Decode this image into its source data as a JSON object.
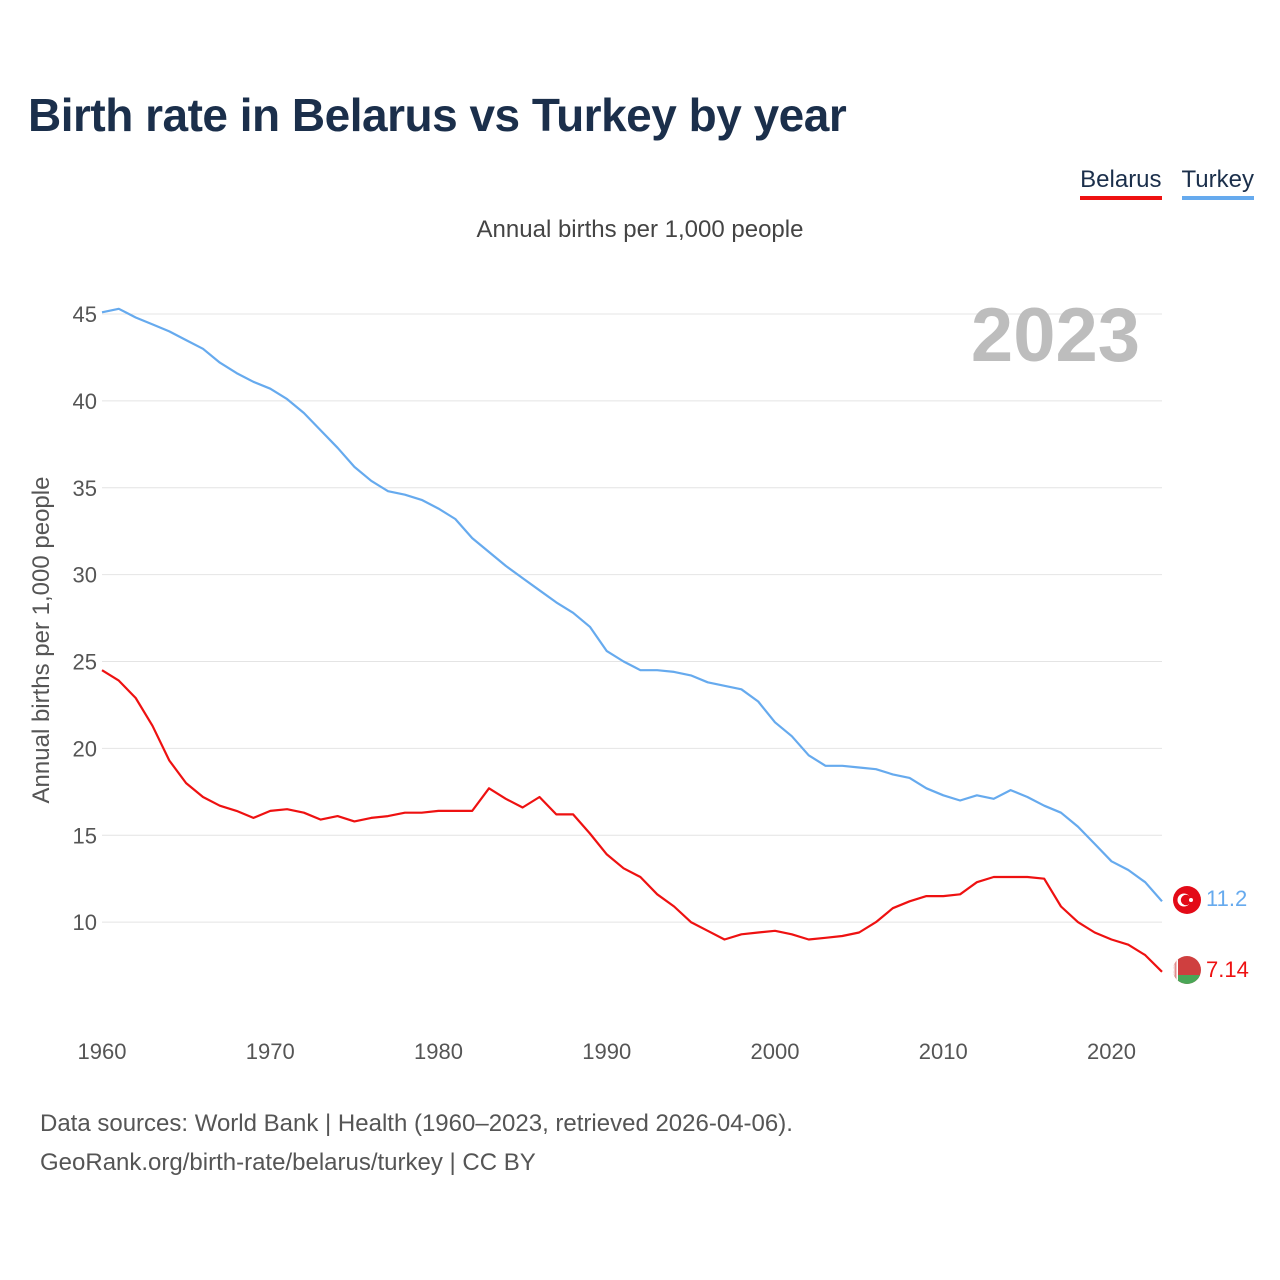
{
  "title": "Birth rate in Belarus vs Turkey by year",
  "subtitle": "Annual births per 1,000 people",
  "legend": [
    {
      "label": "Belarus",
      "color": "#ee1111"
    },
    {
      "label": "Turkey",
      "color": "#66aaee"
    }
  ],
  "year_display": "2023",
  "end_labels": {
    "belarus": "7.14",
    "turkey": "11.2"
  },
  "flags": {
    "belarus": "belarus-flag",
    "turkey": "turkey-flag"
  },
  "source": {
    "line1": "Data sources: World Bank | Health (1960–2023, retrieved 2026-04-06).",
    "line2": "GeoRank.org/birth-rate/belarus/turkey | CC BY"
  },
  "chart_data": {
    "type": "line",
    "title": "Birth rate in Belarus vs Turkey by year",
    "xlabel": "",
    "ylabel": "Annual births per 1,000 people",
    "xlim": [
      1960,
      2023
    ],
    "ylim": [
      5,
      45
    ],
    "yticks": [
      10,
      15,
      20,
      25,
      30,
      35,
      40,
      45
    ],
    "xticks": [
      1960,
      1970,
      1980,
      1990,
      2000,
      2010,
      2020
    ],
    "grid": true,
    "legend_position": "top-right",
    "x": [
      1960,
      1961,
      1962,
      1963,
      1964,
      1965,
      1966,
      1967,
      1968,
      1969,
      1970,
      1971,
      1972,
      1973,
      1974,
      1975,
      1976,
      1977,
      1978,
      1979,
      1980,
      1981,
      1982,
      1983,
      1984,
      1985,
      1986,
      1987,
      1988,
      1989,
      1990,
      1991,
      1992,
      1993,
      1994,
      1995,
      1996,
      1997,
      1998,
      1999,
      2000,
      2001,
      2002,
      2003,
      2004,
      2005,
      2006,
      2007,
      2008,
      2009,
      2010,
      2011,
      2012,
      2013,
      2014,
      2015,
      2016,
      2017,
      2018,
      2019,
      2020,
      2021,
      2022,
      2023
    ],
    "series": [
      {
        "name": "Belarus",
        "color": "#ee1111",
        "values": [
          24.5,
          23.9,
          22.9,
          21.3,
          19.3,
          18.0,
          17.2,
          16.7,
          16.4,
          16.0,
          16.4,
          16.5,
          16.3,
          15.9,
          16.1,
          15.8,
          16.0,
          16.1,
          16.3,
          16.3,
          16.4,
          16.4,
          16.4,
          17.7,
          17.1,
          16.6,
          17.2,
          16.2,
          16.2,
          15.1,
          13.9,
          13.1,
          12.6,
          11.6,
          10.9,
          10.0,
          9.5,
          9.0,
          9.3,
          9.4,
          9.5,
          9.3,
          9.0,
          9.1,
          9.2,
          9.4,
          10.0,
          10.8,
          11.2,
          11.5,
          11.5,
          11.6,
          12.3,
          12.6,
          12.6,
          12.6,
          12.5,
          10.9,
          10.0,
          9.4,
          9.0,
          8.7,
          8.1,
          7.14
        ]
      },
      {
        "name": "Turkey",
        "color": "#66aaee",
        "values": [
          45.1,
          45.3,
          44.8,
          44.4,
          44.0,
          43.5,
          43.0,
          42.2,
          41.6,
          41.1,
          40.7,
          40.1,
          39.3,
          38.3,
          37.3,
          36.2,
          35.4,
          34.8,
          34.6,
          34.3,
          33.8,
          33.2,
          32.1,
          31.3,
          30.5,
          29.8,
          29.1,
          28.4,
          27.8,
          27.0,
          25.6,
          25.0,
          24.5,
          24.5,
          24.4,
          24.2,
          23.8,
          23.6,
          23.4,
          22.7,
          21.5,
          20.7,
          19.6,
          19.0,
          19.0,
          18.9,
          18.8,
          18.5,
          18.3,
          17.7,
          17.3,
          17.0,
          17.3,
          17.1,
          17.6,
          17.2,
          16.7,
          16.3,
          15.5,
          14.5,
          13.5,
          13.0,
          12.3,
          11.2
        ]
      }
    ]
  }
}
